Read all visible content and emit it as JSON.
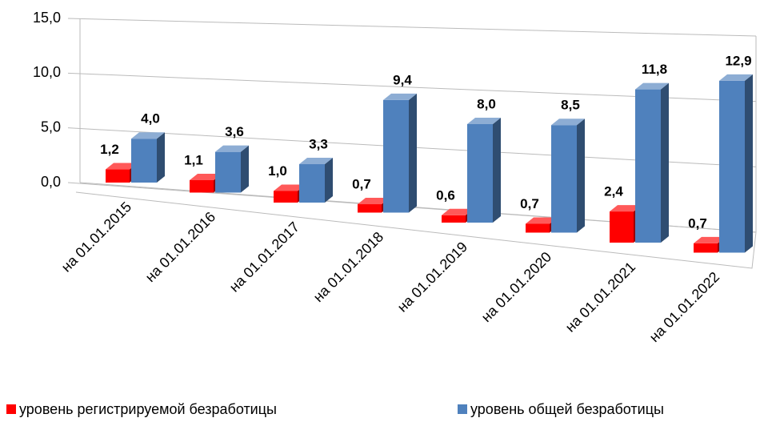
{
  "chart_data": {
    "type": "bar3d",
    "categories": [
      "на 01.01.2015",
      "на 01.01.2016",
      "на 01.01.2017",
      "на 01.01.2018",
      "на 01.01.2019",
      "на 01.01.2020",
      "на 01.01.2021",
      "на 01.01.2022"
    ],
    "series": [
      {
        "name": "уровень регистрируемой безработицы",
        "color": "#ff0000",
        "values": [
          1.2,
          1.1,
          1.0,
          0.7,
          0.6,
          0.7,
          2.4,
          0.7
        ],
        "value_labels": [
          "1,2",
          "1,1",
          "1,0",
          "0,7",
          "0,6",
          "0,7",
          "2,4",
          "0,7"
        ]
      },
      {
        "name": "уровень общей безработицы",
        "color": "#4f81bd",
        "values": [
          4.0,
          3.6,
          3.3,
          9.4,
          8.0,
          8.5,
          11.8,
          12.9
        ],
        "value_labels": [
          "4,0",
          "3,6",
          "3,3",
          "9,4",
          "8,0",
          "8,5",
          "11,8",
          "12,9"
        ]
      }
    ],
    "ylim": [
      0,
      15
    ],
    "yticks": [
      {
        "value": 0,
        "label": "0,0"
      },
      {
        "value": 5,
        "label": "5,0"
      },
      {
        "value": 10,
        "label": "10,0"
      },
      {
        "value": 15,
        "label": "15,0"
      }
    ],
    "grid": true
  }
}
